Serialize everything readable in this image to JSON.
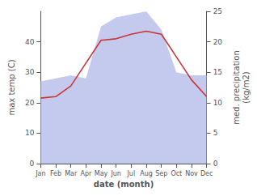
{
  "chart_data": {
    "type": "line",
    "categories": [
      "Jan",
      "Feb",
      "Mar",
      "Apr",
      "May",
      "Jun",
      "Jul",
      "Aug",
      "Sep",
      "Oct",
      "Nov",
      "Dec"
    ],
    "series": [
      {
        "type": "line",
        "color": "#cc3333",
        "values": [
          21.5,
          22.0,
          25.5,
          33.0,
          40.5,
          41.0,
          42.5,
          43.5,
          42.5,
          35.0,
          27.5,
          22.0
        ]
      },
      {
        "type": "area",
        "axis": "y2",
        "color": "#b0b8e8",
        "values": [
          13.5,
          14.0,
          14.5,
          14.0,
          22.5,
          24.0,
          24.5,
          25.0,
          22.0,
          15.0,
          14.5,
          14.5
        ]
      }
    ],
    "xlabel": "date (month)",
    "ylabel": "max temp (C)",
    "y2label": "med. precipitation\n(kg/m2)",
    "ylim": [
      0,
      50
    ],
    "yticks": [
      0,
      10,
      20,
      30,
      40
    ],
    "y2lim": [
      0,
      25
    ],
    "y2ticks": [
      0,
      5,
      10,
      15,
      20,
      25
    ],
    "grid": false
  }
}
